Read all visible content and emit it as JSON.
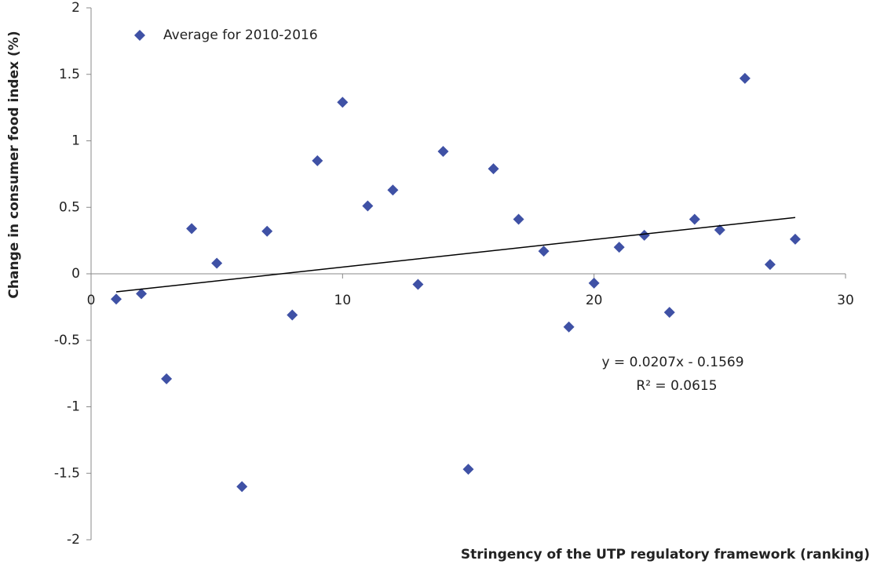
{
  "chart_data": {
    "type": "scatter",
    "xlabel": "Stringency of the UTP regulatory framework (ranking)",
    "ylabel": "Change in consumer food index (%)",
    "series": [
      {
        "name": "Average for 2010-2016",
        "color": "#3f51a5",
        "x": [
          1,
          2,
          3,
          4,
          5,
          6,
          7,
          8,
          9,
          10,
          11,
          12,
          13,
          14,
          15,
          16,
          17,
          18,
          19,
          20,
          21,
          22,
          23,
          24,
          25,
          26,
          27,
          28
        ],
        "values": [
          -0.19,
          -0.15,
          -0.79,
          0.34,
          0.08,
          -1.6,
          0.32,
          -0.31,
          0.85,
          1.29,
          0.51,
          0.63,
          -0.08,
          0.92,
          -1.47,
          0.79,
          0.41,
          0.17,
          -0.4,
          -0.07,
          0.2,
          0.29,
          -0.29,
          0.41,
          0.33,
          1.47,
          0.07,
          0.26
        ]
      }
    ],
    "trendline": {
      "x": [
        1,
        28
      ],
      "y": [
        -0.136,
        0.423
      ],
      "color": "#000000"
    },
    "annotations": [
      "y = 0.0207x - 0.1569",
      "R² = 0.0615"
    ],
    "xlim": [
      0,
      30
    ],
    "xticks": [
      0,
      10,
      20,
      30
    ],
    "ylim": [
      -2,
      2
    ],
    "yticks": [
      -2,
      -1.5,
      -1,
      -0.5,
      0,
      0.5,
      1,
      1.5,
      2
    ],
    "grid": false,
    "legend": "upper left"
  }
}
